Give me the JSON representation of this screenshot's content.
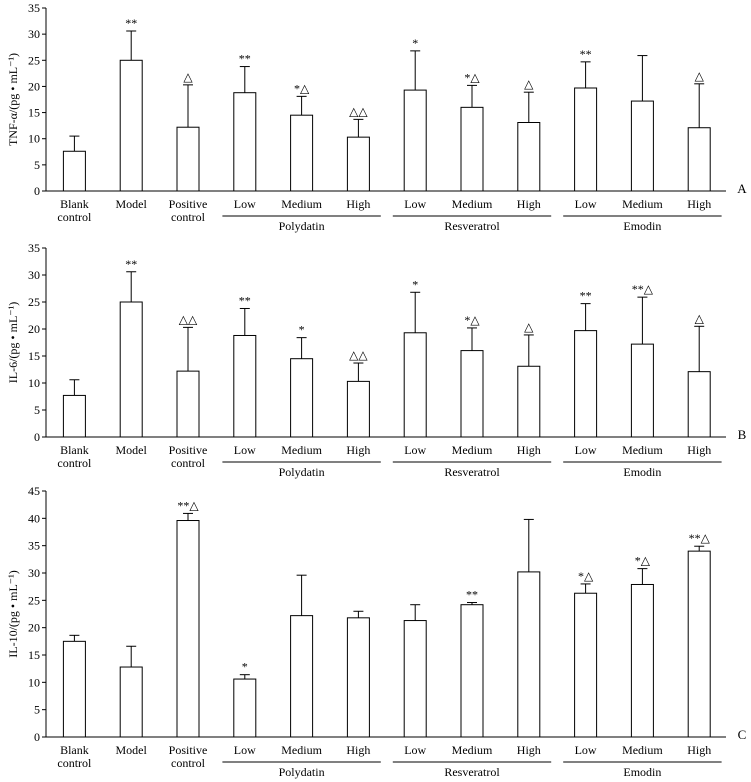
{
  "chart_data": [
    {
      "type": "bar",
      "panel_label": "A",
      "ylabel": "TNF-α/(pg • mL⁻¹)",
      "ylim": [
        0,
        35
      ],
      "yticks": [
        0,
        5,
        10,
        15,
        20,
        25,
        30,
        35
      ],
      "categories": [
        {
          "line1": "Blank",
          "line2": "control"
        },
        {
          "line1": "Model",
          "line2": ""
        },
        {
          "line1": "Positive",
          "line2": "control"
        },
        {
          "line1": "Low",
          "line2": ""
        },
        {
          "line1": "Medium",
          "line2": ""
        },
        {
          "line1": "High",
          "line2": ""
        },
        {
          "line1": "Low",
          "line2": ""
        },
        {
          "line1": "Medium",
          "line2": ""
        },
        {
          "line1": "High",
          "line2": ""
        },
        {
          "line1": "Low",
          "line2": ""
        },
        {
          "line1": "Medium",
          "line2": ""
        },
        {
          "line1": "High",
          "line2": ""
        }
      ],
      "groups": [
        {
          "name": "Polydatin",
          "from": 3,
          "to": 5
        },
        {
          "name": "Resveratrol",
          "from": 6,
          "to": 8
        },
        {
          "name": "Emodin",
          "from": 9,
          "to": 11
        }
      ],
      "values": [
        7.6,
        25.0,
        12.2,
        18.8,
        14.5,
        10.3,
        19.3,
        16.0,
        13.1,
        19.7,
        17.2,
        12.1
      ],
      "errors": [
        2.9,
        5.6,
        8.1,
        5.0,
        3.6,
        3.4,
        7.5,
        4.2,
        5.8,
        5.0,
        8.7,
        8.4
      ],
      "annotations": [
        "",
        "**",
        "△",
        "**",
        "*△",
        "△△",
        "*",
        "*△",
        "△",
        "**",
        "",
        "△"
      ]
    },
    {
      "type": "bar",
      "panel_label": "B",
      "ylabel": "IL-6/(pg • mL⁻¹)",
      "ylim": [
        0,
        35
      ],
      "yticks": [
        0,
        5,
        10,
        15,
        20,
        25,
        30,
        35
      ],
      "categories": [
        {
          "line1": "Blank",
          "line2": "control"
        },
        {
          "line1": "Model",
          "line2": ""
        },
        {
          "line1": "Positive",
          "line2": "control"
        },
        {
          "line1": "Low",
          "line2": ""
        },
        {
          "line1": "Medium",
          "line2": ""
        },
        {
          "line1": "High",
          "line2": ""
        },
        {
          "line1": "Low",
          "line2": ""
        },
        {
          "line1": "Medium",
          "line2": ""
        },
        {
          "line1": "High",
          "line2": ""
        },
        {
          "line1": "Low",
          "line2": ""
        },
        {
          "line1": "Medium",
          "line2": ""
        },
        {
          "line1": "High",
          "line2": ""
        }
      ],
      "groups": [
        {
          "name": "Polydatin",
          "from": 3,
          "to": 5
        },
        {
          "name": "Resveratrol",
          "from": 6,
          "to": 8
        },
        {
          "name": "Emodin",
          "from": 9,
          "to": 11
        }
      ],
      "values": [
        7.7,
        25.0,
        12.2,
        18.8,
        14.5,
        10.3,
        19.3,
        16.0,
        13.1,
        19.7,
        17.2,
        12.1
      ],
      "errors": [
        2.9,
        5.6,
        8.1,
        5.0,
        3.9,
        3.4,
        7.5,
        4.2,
        5.8,
        5.0,
        8.7,
        8.4
      ],
      "annotations": [
        "",
        "**",
        "△△",
        "**",
        "*",
        "△△",
        "*",
        "*△",
        "△",
        "**",
        "**△",
        "△"
      ]
    },
    {
      "type": "bar",
      "panel_label": "C",
      "ylabel": "IL-10/(pg • mL⁻¹)",
      "ylim": [
        0,
        45
      ],
      "yticks": [
        0,
        5,
        10,
        15,
        20,
        25,
        30,
        35,
        40,
        45
      ],
      "categories": [
        {
          "line1": "Blank",
          "line2": "control"
        },
        {
          "line1": "Model",
          "line2": ""
        },
        {
          "line1": "Positive",
          "line2": "control"
        },
        {
          "line1": "Low",
          "line2": ""
        },
        {
          "line1": "Medium",
          "line2": ""
        },
        {
          "line1": "High",
          "line2": ""
        },
        {
          "line1": "Low",
          "line2": ""
        },
        {
          "line1": "Medium",
          "line2": ""
        },
        {
          "line1": "High",
          "line2": ""
        },
        {
          "line1": "Low",
          "line2": ""
        },
        {
          "line1": "Medium",
          "line2": ""
        },
        {
          "line1": "High",
          "line2": ""
        }
      ],
      "groups": [
        {
          "name": "Polydatin",
          "from": 3,
          "to": 5
        },
        {
          "name": "Resveratrol",
          "from": 6,
          "to": 8
        },
        {
          "name": "Emodin",
          "from": 9,
          "to": 11
        }
      ],
      "values": [
        17.5,
        12.8,
        39.6,
        10.6,
        22.2,
        21.8,
        21.3,
        24.2,
        30.2,
        26.3,
        27.9,
        34.0
      ],
      "errors": [
        1.1,
        3.8,
        1.3,
        0.8,
        7.4,
        1.2,
        2.9,
        0.4,
        9.6,
        1.7,
        2.9,
        0.9
      ],
      "annotations": [
        "",
        "",
        "**△",
        "*",
        "",
        "",
        "",
        "**",
        "",
        "*△",
        "*△",
        "**△"
      ]
    }
  ]
}
